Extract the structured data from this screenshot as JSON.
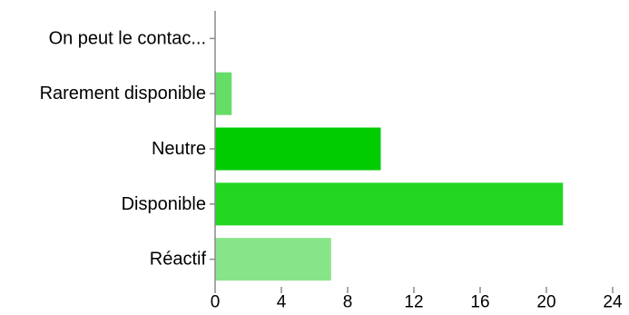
{
  "chart_data": {
    "type": "bar",
    "orientation": "horizontal",
    "categories": [
      "On peut le contac...",
      "Rarement disponible",
      "Neutre",
      "Disponible",
      "Réactif"
    ],
    "values": [
      0,
      1,
      10,
      21,
      7
    ],
    "bar_colors": [
      "#00cc00",
      "#66dd66",
      "#00cc00",
      "#22d622",
      "#88e488"
    ],
    "xlim": [
      0,
      24
    ],
    "xticks": [
      0,
      4,
      8,
      12,
      16,
      20,
      24
    ],
    "title": "",
    "xlabel": "",
    "ylabel": "",
    "grid": false,
    "legend": "none"
  }
}
